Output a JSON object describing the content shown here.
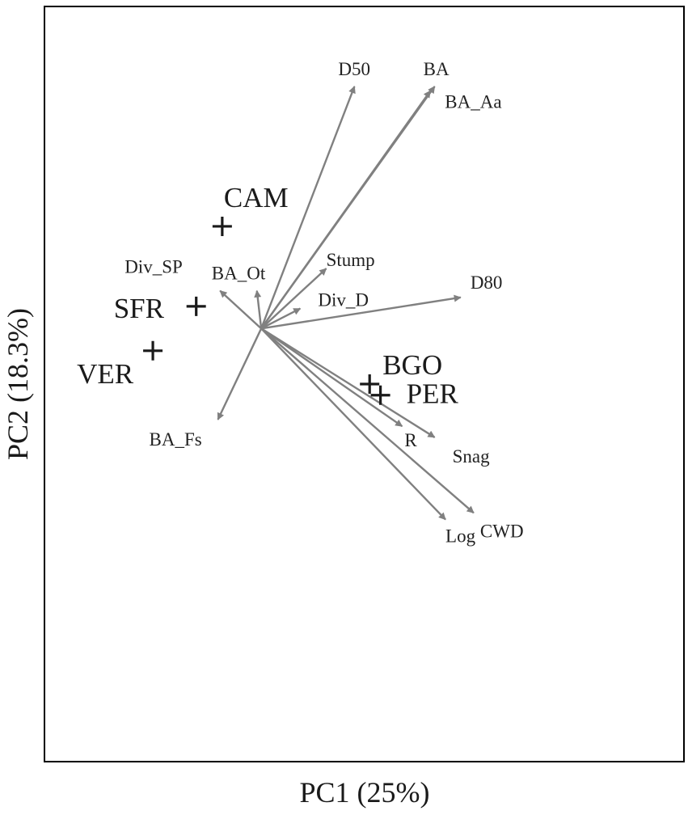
{
  "chart_data": {
    "type": "scatter",
    "subtype": "pca-biplot",
    "xlabel": "PC1 (25%)",
    "ylabel": "PC2 (18.3%)",
    "xlim": [
      -1.0,
      1.95
    ],
    "ylim": [
      -1.95,
      1.45
    ],
    "grid": false,
    "legend": "none",
    "colors": {
      "arrow": "#808080",
      "site": "#1a1a1a",
      "frame": "#000000"
    },
    "sites": [
      {
        "label": "CAM",
        "x": -0.18,
        "y": 0.46
      },
      {
        "label": "SFR",
        "x": -0.3,
        "y": 0.1
      },
      {
        "label": "VER",
        "x": -0.5,
        "y": -0.1
      },
      {
        "label": "BGO",
        "x": 0.5,
        "y": -0.25
      },
      {
        "label": "PER",
        "x": 0.55,
        "y": -0.3
      }
    ],
    "loadings": [
      {
        "label": "D50",
        "x": 0.43,
        "y": 1.09
      },
      {
        "label": "BA",
        "x": 0.8,
        "y": 1.09
      },
      {
        "label": "BA_Aa",
        "x": 0.78,
        "y": 1.07
      },
      {
        "label": "Stump",
        "x": 0.3,
        "y": 0.27
      },
      {
        "label": "D80",
        "x": 0.92,
        "y": 0.14
      },
      {
        "label": "Div_D",
        "x": 0.18,
        "y": 0.09
      },
      {
        "label": "BA_Ot",
        "x": -0.02,
        "y": 0.17
      },
      {
        "label": "Div_SP",
        "x": -0.19,
        "y": 0.17
      },
      {
        "label": "BA_Fs",
        "x": -0.2,
        "y": -0.41
      },
      {
        "label": "R",
        "x": 0.65,
        "y": -0.44
      },
      {
        "label": "Snag",
        "x": 0.8,
        "y": -0.49
      },
      {
        "label": "Log",
        "x": 0.85,
        "y": -0.86
      },
      {
        "label": "CWD",
        "x": 0.98,
        "y": -0.83
      }
    ]
  }
}
